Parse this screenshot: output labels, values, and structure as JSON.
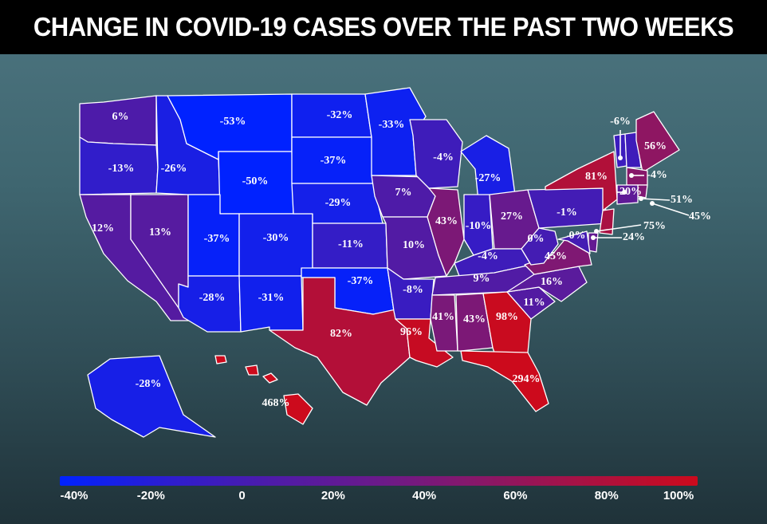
{
  "title": "CHANGE IN COVID-19 CASES OVER THE PAST TWO WEEKS",
  "legend": {
    "ticks": [
      "-40%",
      "-20%",
      "0",
      "20%",
      "40%",
      "60%",
      "80%",
      "100%"
    ],
    "tick_values": [
      -40,
      -20,
      0,
      20,
      40,
      60,
      80,
      100
    ],
    "colors": [
      "#0022ff",
      "#2c1dd0",
      "#4e1ba8",
      "#6b1a8a",
      "#8a1766",
      "#ab1140",
      "#cc0a1c"
    ]
  },
  "states": [
    {
      "id": "WA",
      "label": "6%",
      "value": 6
    },
    {
      "id": "OR",
      "label": "-13%",
      "value": -13
    },
    {
      "id": "CA",
      "label": "12%",
      "value": 12
    },
    {
      "id": "NV",
      "label": "13%",
      "value": 13
    },
    {
      "id": "ID",
      "label": "-26%",
      "value": -26
    },
    {
      "id": "MT",
      "label": "-53%",
      "value": -53
    },
    {
      "id": "WY",
      "label": "-50%",
      "value": -50
    },
    {
      "id": "UT",
      "label": "-37%",
      "value": -37
    },
    {
      "id": "AZ",
      "label": "-28%",
      "value": -28
    },
    {
      "id": "CO",
      "label": "-30%",
      "value": -30
    },
    {
      "id": "NM",
      "label": "-31%",
      "value": -31
    },
    {
      "id": "ND",
      "label": "-32%",
      "value": -32
    },
    {
      "id": "SD",
      "label": "-37%",
      "value": -37
    },
    {
      "id": "NE",
      "label": "-29%",
      "value": -29
    },
    {
      "id": "KS",
      "label": "-11%",
      "value": -11
    },
    {
      "id": "OK",
      "label": "-37%",
      "value": -37
    },
    {
      "id": "TX",
      "label": "82%",
      "value": 82
    },
    {
      "id": "MN",
      "label": "-33%",
      "value": -33
    },
    {
      "id": "IA",
      "label": "7%",
      "value": 7
    },
    {
      "id": "MO",
      "label": "10%",
      "value": 10
    },
    {
      "id": "AR",
      "label": "-8%",
      "value": -8
    },
    {
      "id": "LA",
      "label": "96%",
      "value": 96
    },
    {
      "id": "WI",
      "label": "-4%",
      "value": -4
    },
    {
      "id": "IL",
      "label": "43%",
      "value": 43
    },
    {
      "id": "MI",
      "label": "-27%",
      "value": -27
    },
    {
      "id": "IN",
      "label": "-10%",
      "value": -10
    },
    {
      "id": "OH",
      "label": "27%",
      "value": 27
    },
    {
      "id": "KY",
      "label": "-4%",
      "value": -4
    },
    {
      "id": "TN",
      "label": "9%",
      "value": 9
    },
    {
      "id": "MS",
      "label": "41%",
      "value": 41
    },
    {
      "id": "AL",
      "label": "43%",
      "value": 43
    },
    {
      "id": "GA",
      "label": "98%",
      "value": 98
    },
    {
      "id": "FL",
      "label": "294%",
      "value": 294
    },
    {
      "id": "SC",
      "label": "11%",
      "value": 11
    },
    {
      "id": "NC",
      "label": "16%",
      "value": 16
    },
    {
      "id": "VA",
      "label": "45%",
      "value": 45
    },
    {
      "id": "WV",
      "label": "0%",
      "value": 0
    },
    {
      "id": "PA",
      "label": "-1%",
      "value": -1
    },
    {
      "id": "NY",
      "label": "81%",
      "value": 81
    },
    {
      "id": "VT",
      "label": "-6%",
      "value": -6
    },
    {
      "id": "NH",
      "label": "-4%",
      "value": -4
    },
    {
      "id": "ME",
      "label": "56%",
      "value": 56
    },
    {
      "id": "MA",
      "label": "51%",
      "value": 51
    },
    {
      "id": "RI",
      "label": "45%",
      "value": 45
    },
    {
      "id": "CT",
      "label": "20%",
      "value": 20
    },
    {
      "id": "NJ",
      "label": "75%",
      "value": 75
    },
    {
      "id": "DE",
      "label": "24%",
      "value": 24
    },
    {
      "id": "MD",
      "label": "0%",
      "value": 0
    },
    {
      "id": "AK",
      "label": "-28%",
      "value": -28
    },
    {
      "id": "HI",
      "label": "468%",
      "value": 468
    }
  ]
}
